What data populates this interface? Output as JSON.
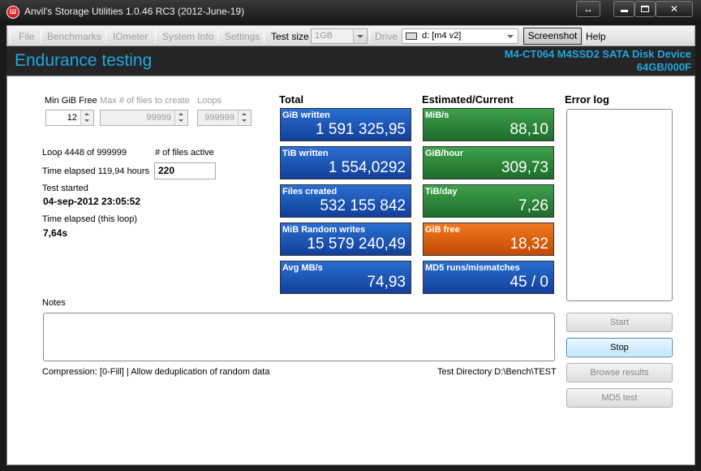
{
  "window": {
    "title": "Anvil's Storage Utilities 1.0.46 RC3 (2012-June-19)",
    "app_icon": "anvil-app-icon",
    "controls": {
      "restore": "↔",
      "minimize": "minimize-icon",
      "maximize": "maximize-icon",
      "close": "✕"
    }
  },
  "menu": {
    "file": "File",
    "benchmarks": "Benchmarks",
    "iometer": "IOmeter",
    "system_info": "System Info",
    "settings": "Settings",
    "test_size_label": "Test size",
    "test_size_value": "1GB",
    "drive_label": "Drive",
    "drive_value": "d: [m4 v2]",
    "screenshot": "Screenshot",
    "help": "Help"
  },
  "header": {
    "title": "Endurance testing",
    "device_name": "M4-CT064 M4SSD2 SATA Disk Device",
    "device_size": "64GB/000F",
    "accent_color": "#1ea8e0"
  },
  "params": {
    "min_gib_free_label": "Min GiB Free",
    "min_gib_free_value": "12",
    "max_files_label": "Max # of files to create",
    "max_files_value": "99999",
    "loops_label": "Loops",
    "loops_value": "999999"
  },
  "status": {
    "loop_text": "Loop 4448 of 999999",
    "files_active_label": "# of files active",
    "files_active_value": "220",
    "time_elapsed_text": "Time elapsed 119,94 hours",
    "test_started_label": "Test started",
    "test_started_value": "04-sep-2012 23:05:52",
    "loop_elapsed_label": "Time elapsed (this loop)",
    "loop_elapsed_value": "7,64s"
  },
  "totals": {
    "heading": "Total",
    "tiles": [
      {
        "label": "GiB written",
        "value": "1 591 325,95"
      },
      {
        "label": "TiB written",
        "value": "1 554,0292"
      },
      {
        "label": "Files created",
        "value": "532 155 842"
      },
      {
        "label": "MiB Random writes",
        "value": "15 579 240,49"
      },
      {
        "label": "Avg MB/s",
        "value": "74,93"
      }
    ]
  },
  "estimates": {
    "heading": "Estimated/Current",
    "tiles": [
      {
        "label": "MiB/s",
        "value": "88,10",
        "color": "green"
      },
      {
        "label": "GiB/hour",
        "value": "309,73",
        "color": "green"
      },
      {
        "label": "TiB/day",
        "value": "7,26",
        "color": "green"
      },
      {
        "label": "GiB free",
        "value": "18,32",
        "color": "orange"
      },
      {
        "label": "MD5 runs/mismatches",
        "value": "45 / 0",
        "color": "blue"
      }
    ]
  },
  "error_log": {
    "label": "Error log"
  },
  "notes": {
    "label": "Notes"
  },
  "footer": {
    "compression": "Compression: [0-Fill]  | Allow deduplication of random data",
    "test_directory": "Test Directory D:\\Bench\\TEST"
  },
  "buttons": {
    "start": "Start",
    "stop": "Stop",
    "browse_results": "Browse results",
    "md5_test": "MD5 test"
  }
}
